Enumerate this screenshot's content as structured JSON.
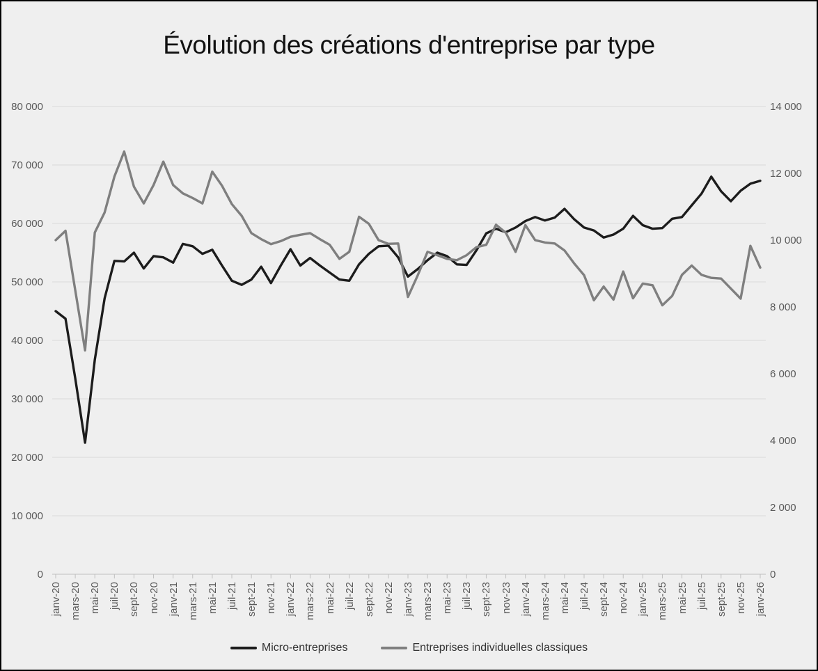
{
  "chart_title": "Évolution des créations d'entreprise par type",
  "legend": {
    "items": [
      {
        "label": "Micro-entreprises",
        "color": "#1c1c1c",
        "icon": "line-swatch"
      },
      {
        "label": "Entreprises individuelles classiques",
        "color": "#7f7f7f",
        "icon": "line-swatch"
      }
    ]
  },
  "colors": {
    "background": "#efefef",
    "gridline": "#d9d9d9",
    "axis_line": "#bfbfbf",
    "tick_label": "#595959",
    "series_micro": "#1c1c1c",
    "series_classiques": "#7f7f7f"
  },
  "chart_data": {
    "type": "line",
    "title": "Évolution des créations d'entreprise par type",
    "grid": true,
    "legend_position": "bottom",
    "x": [
      "janv-20",
      "févr-20",
      "mars-20",
      "avr-20",
      "mai-20",
      "juin-20",
      "juil-20",
      "août-20",
      "sept-20",
      "oct-20",
      "nov-20",
      "déc-20",
      "janv-21",
      "févr-21",
      "mars-21",
      "avr-21",
      "mai-21",
      "juin-21",
      "juil-21",
      "août-21",
      "sept-21",
      "oct-21",
      "nov-21",
      "déc-21",
      "janv-22",
      "févr-22",
      "mars-22",
      "avr-22",
      "mai-22",
      "juin-22",
      "juil-22",
      "août-22",
      "sept-22",
      "oct-22",
      "nov-22",
      "déc-22",
      "janv-23",
      "févr-23",
      "mars-23",
      "avr-23",
      "mai-23",
      "juin-23",
      "juil-23",
      "août-23",
      "sept-23",
      "oct-23",
      "nov-23",
      "déc-23",
      "janv-24",
      "févr-24",
      "mars-24",
      "avr-24",
      "mai-24",
      "juin-24",
      "juil-24",
      "août-24",
      "sept-24",
      "oct-24",
      "nov-24",
      "déc-24",
      "janv-25",
      "févr-25",
      "mars-25",
      "avr-25",
      "mai-25",
      "juin-25",
      "juil-25",
      "août-25",
      "sept-25",
      "oct-25",
      "nov-25",
      "déc-25",
      "janv-26"
    ],
    "x_tick_labels_visible": [
      "janv-20",
      "mars-20",
      "mai-20",
      "juil-20",
      "sept-20",
      "nov-20",
      "janv-21",
      "mars-21",
      "mai-21",
      "juil-21",
      "sept-21",
      "nov-21",
      "janv-22",
      "mars-22",
      "mai-22",
      "juil-22",
      "sept-22",
      "nov-22",
      "janv-23",
      "mars-23",
      "mai-23",
      "juil-23",
      "sept-23",
      "nov-23",
      "janv-24",
      "mars-24",
      "mai-24",
      "juil-24",
      "sept-24",
      "nov-24",
      "janv-25",
      "mars-25",
      "mai-25",
      "juil-25",
      "sept-25",
      "nov-25",
      "janv-26"
    ],
    "left_axis": {
      "min": 0,
      "max": 80000,
      "tick_step": 10000,
      "tick_labels": [
        "0",
        "10 000",
        "20 000",
        "30 000",
        "40 000",
        "50 000",
        "60 000",
        "70 000",
        "80 000"
      ]
    },
    "right_axis": {
      "min": 0,
      "max": 14000,
      "tick_step": 2000,
      "tick_labels": [
        "0",
        "2 000",
        "4 000",
        "6 000",
        "8 000",
        "10 000",
        "12 000",
        "14 000"
      ]
    },
    "series": [
      {
        "name": "Micro-entreprises",
        "axis": "left",
        "color": "#1c1c1c",
        "values": [
          45000,
          43700,
          33500,
          22500,
          36700,
          47200,
          53600,
          53500,
          55000,
          52300,
          54400,
          54200,
          53300,
          56500,
          56100,
          54800,
          55500,
          52800,
          50200,
          49500,
          50400,
          52600,
          49800,
          52800,
          55600,
          52800,
          54100,
          52800,
          51600,
          50400,
          50200,
          53000,
          54800,
          56100,
          56200,
          54200,
          50900,
          52200,
          53700,
          55000,
          54400,
          53000,
          52900,
          55400,
          58300,
          59100,
          58500,
          59300,
          60400,
          61100,
          60500,
          61000,
          62500,
          60700,
          59300,
          58800,
          57600,
          58100,
          59100,
          61300,
          59700,
          59100,
          59200,
          60800,
          61100,
          63100,
          65100,
          68000,
          65500,
          63800,
          65600,
          66800,
          67300
        ]
      },
      {
        "name": "Entreprises individuelles classiques",
        "axis": "right",
        "color": "#7f7f7f",
        "values": [
          10000,
          10280,
          8500,
          6700,
          10230,
          10830,
          11900,
          12650,
          11600,
          11100,
          11650,
          12350,
          11650,
          11400,
          11260,
          11100,
          12050,
          11630,
          11080,
          10730,
          10210,
          10030,
          9880,
          9970,
          10100,
          10160,
          10210,
          10030,
          9860,
          9440,
          9650,
          10700,
          10490,
          10000,
          9890,
          9900,
          8300,
          8950,
          9650,
          9550,
          9440,
          9400,
          9550,
          9790,
          9860,
          10460,
          10220,
          9650,
          10450,
          10000,
          9930,
          9900,
          9690,
          9300,
          8950,
          8200,
          8610,
          8220,
          9060,
          8260,
          8700,
          8650,
          8050,
          8330,
          8960,
          9240,
          8960,
          8870,
          8850,
          8550,
          8250,
          9830,
          9180
        ]
      }
    ]
  }
}
